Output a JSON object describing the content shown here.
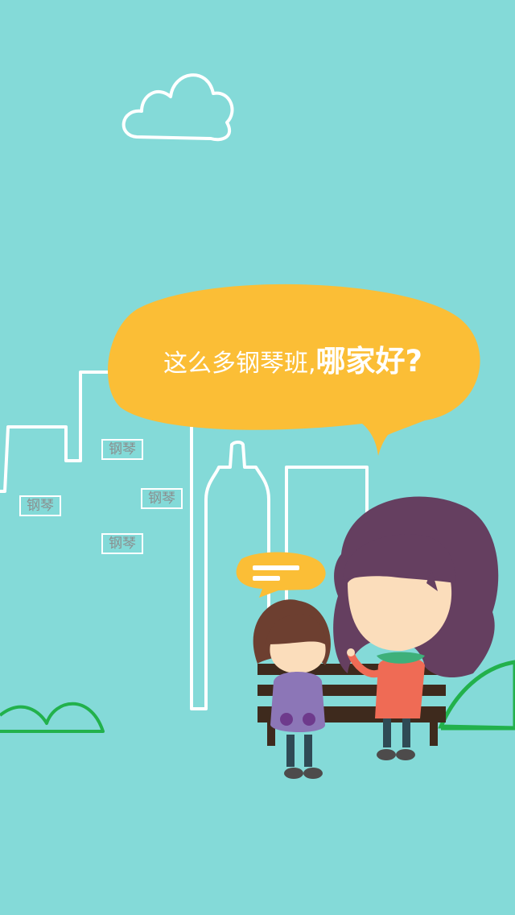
{
  "headline": {
    "normal": "这么多钢琴班,",
    "emphasis": "哪家好?"
  },
  "piano_labels": [
    "钢琴",
    "钢琴",
    "钢琴",
    "钢琴"
  ],
  "colors": {
    "background": "#84dad8",
    "bubble": "#fbbe36",
    "outline": "#ffffff",
    "hill": "#22b14c",
    "bench": "#3e2a1d"
  },
  "icons": {
    "cloud": "cloud-icon",
    "city": "city-skyline-icon",
    "speech": "speech-bubble-icon",
    "chat": "chat-bubble-icon"
  }
}
